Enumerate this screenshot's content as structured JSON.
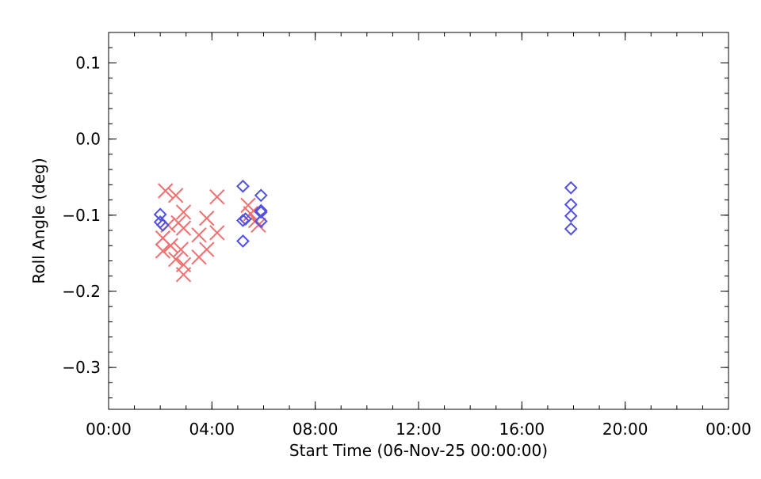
{
  "chart_data": {
    "type": "scatter",
    "title": "",
    "xlabel": "Start Time (06-Nov-25 00:00:00)",
    "ylabel": "Roll Angle (deg)",
    "xlim_hours": [
      0,
      24
    ],
    "ylim": [
      -0.355,
      0.14
    ],
    "x_ticks": [
      {
        "hours": 0,
        "label": "00:00"
      },
      {
        "hours": 4,
        "label": "04:00"
      },
      {
        "hours": 8,
        "label": "08:00"
      },
      {
        "hours": 12,
        "label": "12:00"
      },
      {
        "hours": 16,
        "label": "16:00"
      },
      {
        "hours": 20,
        "label": "20:00"
      },
      {
        "hours": 24,
        "label": "00:00"
      }
    ],
    "y_ticks": [
      {
        "value": 0.1,
        "label": "0.1"
      },
      {
        "value": 0.0,
        "label": "0.0"
      },
      {
        "value": -0.1,
        "label": "−0.1"
      },
      {
        "value": -0.2,
        "label": "−0.2"
      },
      {
        "value": -0.3,
        "label": "−0.3"
      }
    ],
    "x_minor_step_hours": 1,
    "y_minor_step": 0.02,
    "grid": false,
    "legend": "none",
    "series": [
      {
        "marker": "cross",
        "color": "#f07070",
        "points": [
          {
            "x": "02:06",
            "y": -0.147
          },
          {
            "x": "02:06",
            "y": -0.13
          },
          {
            "x": "02:12",
            "y": -0.068
          },
          {
            "x": "02:18",
            "y": -0.113
          },
          {
            "x": "02:24",
            "y": -0.14
          },
          {
            "x": "02:36",
            "y": -0.074
          },
          {
            "x": "02:36",
            "y": -0.158
          },
          {
            "x": "02:42",
            "y": -0.11
          },
          {
            "x": "02:48",
            "y": -0.145
          },
          {
            "x": "02:54",
            "y": -0.096
          },
          {
            "x": "02:54",
            "y": -0.117
          },
          {
            "x": "02:54",
            "y": -0.165
          },
          {
            "x": "02:54",
            "y": -0.178
          },
          {
            "x": "03:30",
            "y": -0.126
          },
          {
            "x": "03:30",
            "y": -0.155
          },
          {
            "x": "03:48",
            "y": -0.104
          },
          {
            "x": "03:48",
            "y": -0.145
          },
          {
            "x": "04:12",
            "y": -0.076
          },
          {
            "x": "04:12",
            "y": -0.123
          },
          {
            "x": "05:24",
            "y": -0.087
          },
          {
            "x": "05:30",
            "y": -0.098
          },
          {
            "x": "05:42",
            "y": -0.107
          },
          {
            "x": "05:48",
            "y": -0.113
          }
        ]
      },
      {
        "marker": "diamond",
        "color": "#5050e8",
        "points": [
          {
            "x": "02:00",
            "y": -0.099
          },
          {
            "x": "02:00",
            "y": -0.109
          },
          {
            "x": "02:06",
            "y": -0.113
          },
          {
            "x": "05:12",
            "y": -0.062
          },
          {
            "x": "05:12",
            "y": -0.107
          },
          {
            "x": "05:12",
            "y": -0.134
          },
          {
            "x": "05:18",
            "y": -0.105
          },
          {
            "x": "05:54",
            "y": -0.074
          },
          {
            "x": "05:54",
            "y": -0.094
          },
          {
            "x": "05:54",
            "y": -0.096
          },
          {
            "x": "05:54",
            "y": -0.108
          },
          {
            "x": "17:54",
            "y": -0.064
          },
          {
            "x": "17:54",
            "y": -0.086
          },
          {
            "x": "17:54",
            "y": -0.101
          },
          {
            "x": "17:54",
            "y": -0.118
          }
        ]
      }
    ]
  }
}
